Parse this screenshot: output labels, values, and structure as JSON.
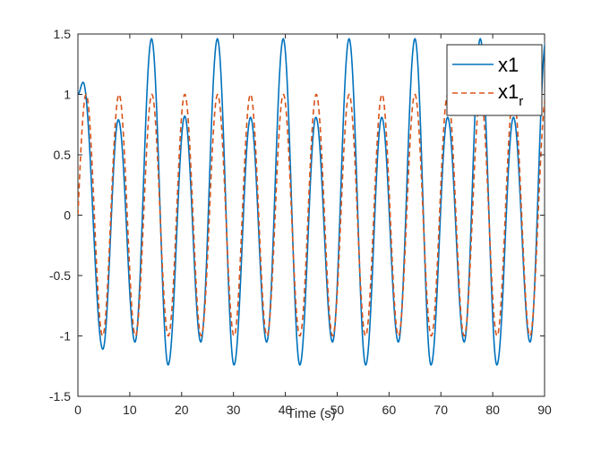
{
  "chart_data": {
    "type": "line",
    "title": "",
    "xlabel": "Time (s)",
    "ylabel": "",
    "xlim": [
      0,
      90
    ],
    "ylim": [
      -1.5,
      1.5
    ],
    "xticks": [
      0,
      10,
      20,
      30,
      40,
      50,
      60,
      70,
      80,
      90
    ],
    "xtick_labels": [
      "0",
      "10",
      "20",
      "30",
      "40",
      "50",
      "60",
      "70",
      "80",
      "90"
    ],
    "yticks": [
      -1.5,
      -1,
      -0.5,
      0,
      0.5,
      1,
      1.5
    ],
    "ytick_labels": [
      "-1.5",
      "-1",
      "-0.5",
      "0",
      "0.5",
      "1",
      "1.5"
    ],
    "grid": false,
    "legend_position": "top-right",
    "series": [
      {
        "name": "x1",
        "color": "#0072BD",
        "style": "solid",
        "peak_times": [
          1.0,
          7.8,
          14.2,
          20.6,
          26.9,
          33.3,
          39.6,
          45.9,
          52.3,
          58.6,
          65.0,
          71.3,
          77.6,
          84.0,
          90.3
        ],
        "peak_values": [
          1.1,
          0.79,
          1.46,
          0.82,
          1.46,
          0.81,
          1.46,
          0.81,
          1.46,
          0.81,
          1.46,
          0.81,
          1.46,
          0.81,
          1.46
        ],
        "trough_times": [
          4.8,
          11.0,
          17.4,
          23.7,
          30.1,
          36.4,
          42.8,
          49.1,
          55.5,
          61.8,
          68.1,
          74.5,
          80.8,
          87.2
        ],
        "trough_values": [
          -1.11,
          -1.05,
          -1.24,
          -1.05,
          -1.24,
          -1.05,
          -1.24,
          -1.05,
          -1.24,
          -1.05,
          -1.24,
          -1.05,
          -1.24,
          -1.05
        ]
      },
      {
        "name": "x1_r",
        "legend_main": "x1",
        "legend_subscript": "r",
        "color": "#D95319",
        "style": "dashed",
        "function": "sin(pi*t/3.17)",
        "amplitude": 1,
        "period": 6.34
      }
    ]
  }
}
